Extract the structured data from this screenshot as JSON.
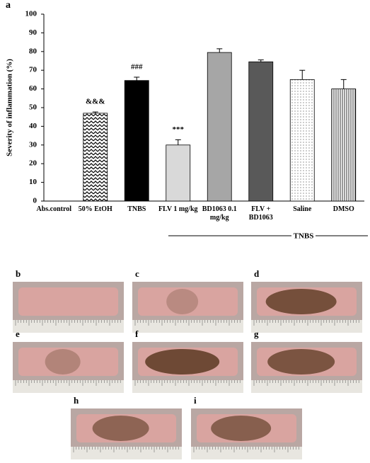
{
  "chart_data": {
    "type": "bar",
    "panel_label": "a",
    "y_label": "Severity of inflammation (%)",
    "categories": [
      "Abs.control",
      "50% EtOH",
      "TNBS",
      "FLV 1 mg/kg",
      "BD1063 0.1 mg/kg",
      "FLV + BD1063",
      "Saline",
      "DMSO"
    ],
    "values": [
      0,
      47,
      64.5,
      30,
      79.5,
      74.5,
      65,
      60
    ],
    "errors": [
      0,
      0.7,
      1.8,
      2.8,
      2,
      1,
      5,
      5
    ],
    "significance": [
      null,
      "&&&",
      "###",
      "***",
      null,
      null,
      null,
      null
    ],
    "colors": [
      "none",
      "url(#p-zig)",
      "#000000",
      "#d9d9d9",
      "#a6a6a6",
      "#595959",
      "url(#p-dot)",
      "url(#p-vert)"
    ],
    "ylim": [
      0,
      100
    ],
    "yticks": [
      0,
      10,
      20,
      30,
      40,
      50,
      60,
      70,
      80,
      90,
      100
    ],
    "group_label": "TNBS"
  },
  "photos": [
    "b",
    "c",
    "d",
    "e",
    "f",
    "g",
    "h",
    "i"
  ]
}
